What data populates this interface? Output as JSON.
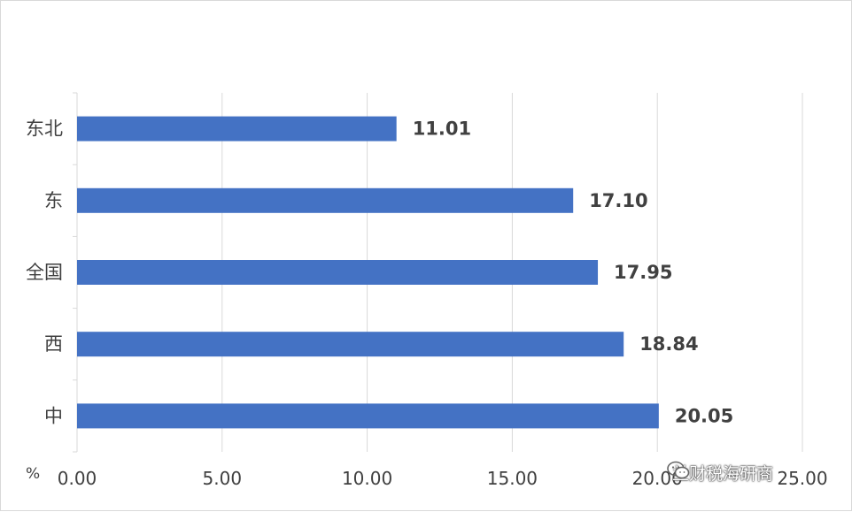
{
  "chart_data": {
    "type": "bar",
    "orientation": "horizontal",
    "categories": [
      "东北",
      "东",
      "全国",
      "西",
      "中"
    ],
    "values": [
      11.01,
      17.1,
      17.95,
      18.84,
      20.05
    ],
    "value_labels": [
      "11.01",
      "17.10",
      "17.95",
      "18.84",
      "20.05"
    ],
    "xlim": [
      0,
      25
    ],
    "xticks": [
      "0.00",
      "5.00",
      "10.00",
      "15.00",
      "20.00",
      "25.00"
    ],
    "xunit": "%",
    "bar_color": "#4472C4",
    "grid": "vertical"
  },
  "watermark": {
    "text": "兰财税海研商",
    "icon": "wechat-icon"
  }
}
